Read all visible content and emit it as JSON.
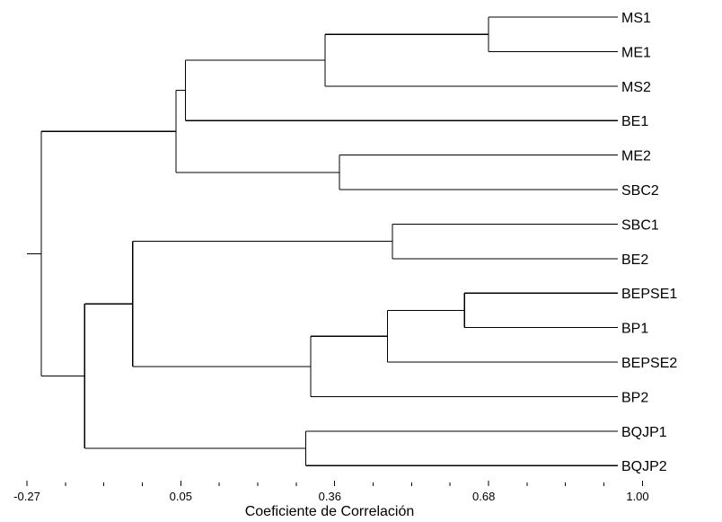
{
  "chart_data": {
    "type": "dendrogram",
    "xlabel": "Coeficiente de Correlación",
    "ticks": [
      {
        "value": -0.27,
        "label": "-0.27"
      },
      {
        "value": 0.05,
        "label": "0.05"
      },
      {
        "value": 0.36,
        "label": "0.36"
      },
      {
        "value": 0.68,
        "label": "0.68"
      },
      {
        "value": 1.0,
        "label": "1.00"
      }
    ],
    "xlim": [
      -0.27,
      1.0
    ],
    "leaves": [
      "MS1",
      "ME1",
      "MS2",
      "BE1",
      "ME2",
      "SBC2",
      "SBC1",
      "BE2",
      "BEPSE1",
      "BP1",
      "BEPSE2",
      "BP2",
      "BQJP1",
      "BQJP2"
    ],
    "merges": [
      {
        "id": "c1",
        "children": [
          "MS1",
          "ME1"
        ],
        "height": 0.69
      },
      {
        "id": "c2",
        "children": [
          "c1",
          "MS2"
        ],
        "height": 0.35
      },
      {
        "id": "c3",
        "children": [
          "c2",
          "BE1"
        ],
        "height": 0.06
      },
      {
        "id": "c4",
        "children": [
          "ME2",
          "SBC2"
        ],
        "height": 0.38
      },
      {
        "id": "c5",
        "children": [
          "c3",
          "c4"
        ],
        "height": 0.04
      },
      {
        "id": "c6",
        "children": [
          "SBC1",
          "BE2"
        ],
        "height": 0.49
      },
      {
        "id": "c7",
        "children": [
          "BEPSE1",
          "BP1"
        ],
        "height": 0.64
      },
      {
        "id": "c8",
        "children": [
          "c7",
          "BEPSE2"
        ],
        "height": 0.48
      },
      {
        "id": "c9",
        "children": [
          "c8",
          "BP2"
        ],
        "height": 0.32
      },
      {
        "id": "c10",
        "children": [
          "c6",
          "c9"
        ],
        "height": -0.05
      },
      {
        "id": "c11",
        "children": [
          "BQJP1",
          "BQJP2"
        ],
        "height": 0.31
      },
      {
        "id": "c12",
        "children": [
          "c10",
          "c11"
        ],
        "height": -0.15
      },
      {
        "id": "c13",
        "children": [
          "c5",
          "c12"
        ],
        "height": -0.24
      }
    ],
    "root_stub_height": -0.27,
    "leaf_height": 1.0
  }
}
